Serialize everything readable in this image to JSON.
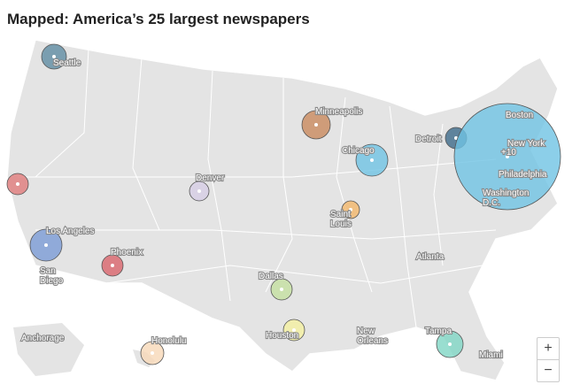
{
  "title": "Mapped: America’s 25 largest newspapers",
  "bubbles": [
    {
      "color": "#5f8ca3"
    },
    {
      "color": "#c98a5e"
    },
    {
      "color": "#6fc3e3"
    },
    {
      "color": "#3d6a8a"
    },
    {
      "color": "#6fc3e3"
    },
    {
      "color": "#d6cde5"
    },
    {
      "color": "#e07b7b"
    },
    {
      "color": "#f3b66a"
    },
    {
      "color": "#7a9bd6"
    },
    {
      "color": "#d9646b"
    },
    {
      "color": "#c4e0a0"
    },
    {
      "color": "#f4f0a0"
    },
    {
      "color": "#7fd6c4"
    },
    {
      "color": "#f8d8b8"
    }
  ],
  "labels": [
    [
      "Seattle"
    ],
    [
      "Minneapolis"
    ],
    [
      "Chicago"
    ],
    [
      "Detroit"
    ],
    [
      "Boston"
    ],
    [
      "New York"
    ],
    [
      "+10"
    ],
    [
      "Philadelphia"
    ],
    [
      "Washington",
      "D.C."
    ],
    [
      "Denver"
    ],
    [
      "Saint",
      "Louis"
    ],
    [
      "Los Angeles"
    ],
    [
      "San",
      "Diego"
    ],
    [
      "Phoenix"
    ],
    [
      "Atlanta"
    ],
    [
      "Dallas"
    ],
    [
      "Houston"
    ],
    [
      "New",
      "Orleans"
    ],
    [
      "Tampa"
    ],
    [
      "Miami"
    ],
    [
      "Anchorage"
    ],
    [
      "Honolulu"
    ]
  ],
  "zoom": {
    "in": "+",
    "out": "−"
  }
}
